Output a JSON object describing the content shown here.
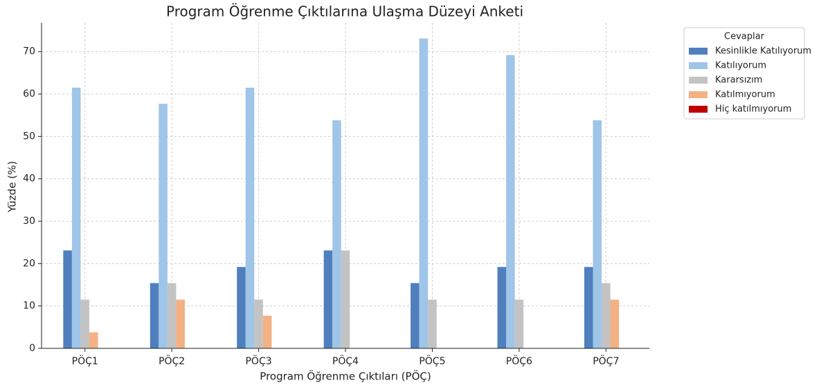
{
  "chart_data": {
    "type": "bar",
    "title": "Program Öğrenme Çıktılarına Ulaşma Düzeyi Anketi",
    "x_label": "Program Öğrenme Çıktıları (PÖÇ)",
    "y_label": "Yüzde (%)",
    "legend_title": "Cevaplar",
    "legend": "upper right outside",
    "grid": true,
    "categories": [
      "PÖÇ1",
      "PÖÇ2",
      "PÖÇ3",
      "PÖÇ4",
      "PÖÇ5",
      "PÖÇ6",
      "PÖÇ7"
    ],
    "series": [
      {
        "name": "Kesinlikle Katılıyorum",
        "color": "#4f7fbd",
        "values": [
          23.1,
          15.4,
          19.2,
          23.1,
          15.4,
          19.2,
          19.2
        ]
      },
      {
        "name": "Katılıyorum",
        "color": "#9fc5e8",
        "values": [
          61.5,
          57.7,
          61.5,
          53.8,
          73.1,
          69.2,
          53.8
        ]
      },
      {
        "name": "Kararsızım",
        "color": "#c3c3c3",
        "values": [
          11.5,
          15.4,
          11.5,
          23.1,
          11.5,
          11.5,
          15.4
        ]
      },
      {
        "name": "Katılmıyorum",
        "color": "#f4b183",
        "values": [
          3.8,
          11.5,
          7.7,
          0,
          0,
          0,
          11.5
        ]
      },
      {
        "name": "Hiç katılmıyorum",
        "color": "#c00000",
        "values": [
          0,
          0,
          0,
          0,
          0,
          0,
          0
        ]
      }
    ],
    "ylim": [
      0,
      76.8
    ],
    "yticks": [
      0,
      10,
      20,
      30,
      40,
      50,
      60,
      70
    ]
  }
}
